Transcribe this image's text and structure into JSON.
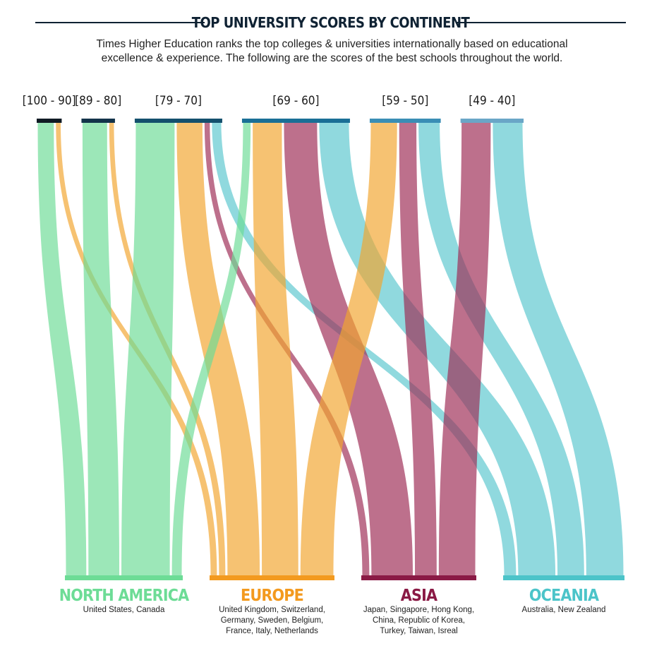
{
  "header": {
    "title": "TOP UNIVERSITY SCORES BY CONTINENT",
    "subtitle_line1": "Times Higher Education ranks the top colleges & universities internationally based on educational",
    "subtitle_line2": "excellence & experience. The following are the scores of the best schools throughout the world."
  },
  "chart_data": {
    "type": "sankey",
    "sources": [
      {
        "id": "s1",
        "label": "[100 - 90]",
        "color": "#101b24"
      },
      {
        "id": "s2",
        "label": "[89 - 80]",
        "color": "#13334a"
      },
      {
        "id": "s3",
        "label": "[79 - 70]",
        "color": "#14506d"
      },
      {
        "id": "s4",
        "label": "[69 - 60]",
        "color": "#1a6f96"
      },
      {
        "id": "s5",
        "label": "[59 - 50]",
        "color": "#3a8eb5"
      },
      {
        "id": "s6",
        "label": "[49 - 40]",
        "color": "#6aa6c7"
      }
    ],
    "targets": [
      {
        "id": "na",
        "label": "NORTH AMERICA",
        "color": "#6ddc96",
        "flow_color": "#6ddc96",
        "subtext": [
          "United States, Canada"
        ]
      },
      {
        "id": "eu",
        "label": "EUROPE",
        "color": "#f39a1f",
        "flow_color": "#f1a52f",
        "subtext": [
          "United Kingdom, Switzerland,",
          "Germany, Sweden, Belgium,",
          "France, Italy, Netherlands"
        ]
      },
      {
        "id": "as",
        "label": "ASIA",
        "color": "#8a1a45",
        "flow_color": "#9e2c56",
        "subtext": [
          "Japan, Singapore, Hong Kong,",
          "China, Republic of Korea,",
          "Turkey, Taiwan, Isreal"
        ]
      },
      {
        "id": "oc",
        "label": "OCEANIA",
        "color": "#4cc4c9",
        "flow_color": "#5cc7cf",
        "subtext": [
          "Australia, New Zealand"
        ]
      }
    ],
    "flows": [
      {
        "source": "s1",
        "target": "na",
        "value": 32
      },
      {
        "source": "s1",
        "target": "eu",
        "value": 12
      },
      {
        "source": "s2",
        "target": "na",
        "value": 47
      },
      {
        "source": "s2",
        "target": "eu",
        "value": 12
      },
      {
        "source": "s3",
        "target": "na",
        "value": 72
      },
      {
        "source": "s3",
        "target": "eu",
        "value": 49
      },
      {
        "source": "s3",
        "target": "as",
        "value": 13
      },
      {
        "source": "s3",
        "target": "oc",
        "value": 20
      },
      {
        "source": "s4",
        "target": "na",
        "value": 17
      },
      {
        "source": "s4",
        "target": "eu",
        "value": 55
      },
      {
        "source": "s4",
        "target": "as",
        "value": 62
      },
      {
        "source": "s4",
        "target": "oc",
        "value": 56
      },
      {
        "source": "s5",
        "target": "eu",
        "value": 50
      },
      {
        "source": "s5",
        "target": "as",
        "value": 34
      },
      {
        "source": "s5",
        "target": "oc",
        "value": 41
      },
      {
        "source": "s6",
        "target": "as",
        "value": 55
      },
      {
        "source": "s6",
        "target": "oc",
        "value": 56
      }
    ]
  }
}
